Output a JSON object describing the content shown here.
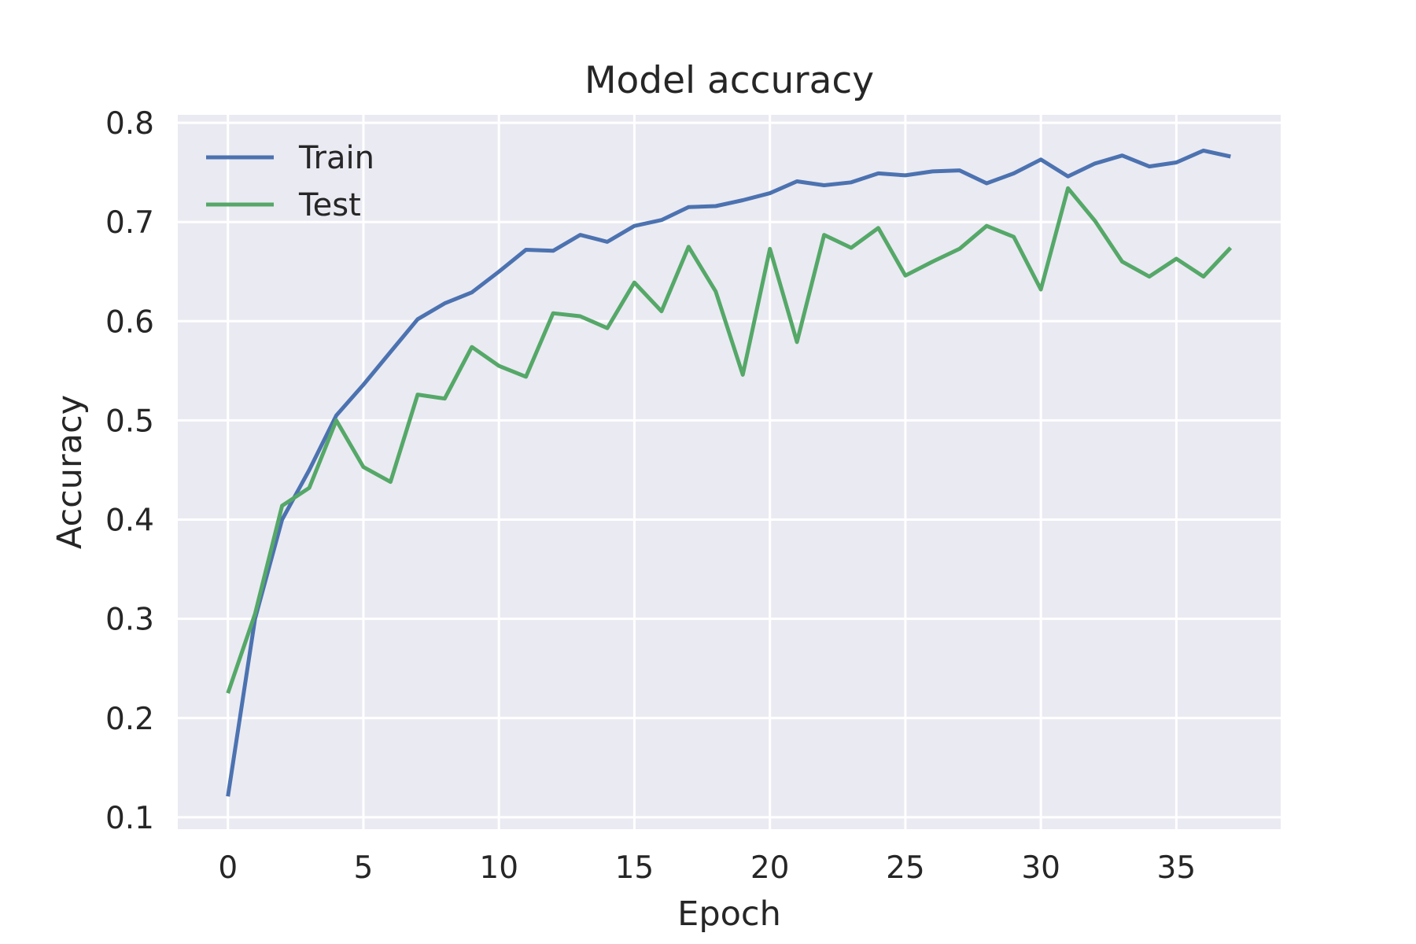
{
  "chart_data": {
    "type": "line",
    "title": "Model accuracy",
    "xlabel": "Epoch",
    "ylabel": "Accuracy",
    "xlim": [
      -1.85,
      38.85
    ],
    "ylim": [
      0.088,
      0.808
    ],
    "xticks": [
      0,
      5,
      10,
      15,
      20,
      25,
      30,
      35
    ],
    "yticks": [
      0.1,
      0.2,
      0.3,
      0.4,
      0.5,
      0.6,
      0.7,
      0.8
    ],
    "xtick_labels": [
      "0",
      "5",
      "10",
      "15",
      "20",
      "25",
      "30",
      "35"
    ],
    "ytick_labels": [
      "0.1",
      "0.2",
      "0.3",
      "0.4",
      "0.5",
      "0.6",
      "0.7",
      "0.8"
    ],
    "grid": true,
    "legend_position": "top-left",
    "background_color": "#eaeaf2",
    "x": [
      0,
      1,
      2,
      3,
      4,
      5,
      6,
      7,
      8,
      9,
      10,
      11,
      12,
      13,
      14,
      15,
      16,
      17,
      18,
      19,
      20,
      21,
      22,
      23,
      24,
      25,
      26,
      27,
      28,
      29,
      30,
      31,
      32,
      33,
      34,
      35,
      36,
      37
    ],
    "series": [
      {
        "name": "Train",
        "color": "#4c72b0",
        "values": [
          0.121,
          0.3,
          0.4,
          0.45,
          0.505,
          0.536,
          0.569,
          0.602,
          0.618,
          0.629,
          0.65,
          0.672,
          0.671,
          0.687,
          0.68,
          0.696,
          0.702,
          0.715,
          0.716,
          0.722,
          0.729,
          0.741,
          0.737,
          0.74,
          0.749,
          0.747,
          0.751,
          0.752,
          0.739,
          0.749,
          0.763,
          0.746,
          0.759,
          0.767,
          0.756,
          0.76,
          0.772,
          0.766
        ]
      },
      {
        "name": "Test",
        "color": "#55a868",
        "values": [
          0.225,
          0.305,
          0.414,
          0.432,
          0.5,
          0.453,
          0.438,
          0.526,
          0.522,
          0.574,
          0.555,
          0.544,
          0.608,
          0.605,
          0.593,
          0.639,
          0.61,
          0.675,
          0.63,
          0.546,
          0.673,
          0.579,
          0.687,
          0.674,
          0.694,
          0.646,
          0.66,
          0.673,
          0.696,
          0.685,
          0.632,
          0.734,
          0.701,
          0.66,
          0.645,
          0.663,
          0.645,
          0.674
        ]
      }
    ]
  }
}
